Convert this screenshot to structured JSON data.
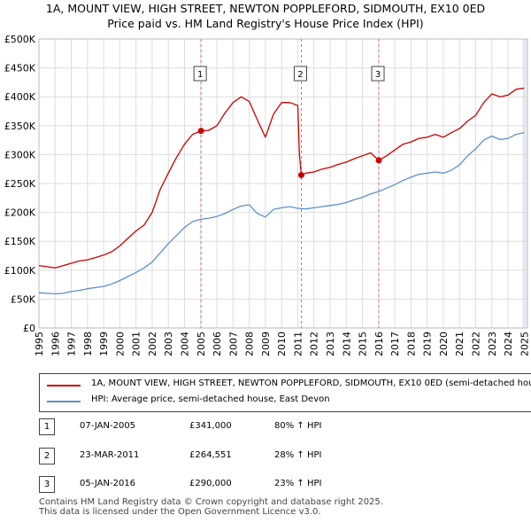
{
  "title_line1": "1A, MOUNT VIEW, HIGH STREET, NEWTON POPPLEFORD, SIDMOUTH, EX10 0ED",
  "title_line2": "Price paid vs. HM Land Registry's House Price Index (HPI)",
  "colors": {
    "price_line": "#cc0000",
    "hpi_line": "#5b8fd0",
    "grid": "#dddddd",
    "band": "#e8eef8",
    "vline": "#e07070"
  },
  "chart_data": {
    "type": "line",
    "ylim": [
      0,
      500000
    ],
    "xlim": [
      1995,
      2025.2
    ],
    "y_ticks": [
      0,
      50000,
      100000,
      150000,
      200000,
      250000,
      300000,
      350000,
      400000,
      450000,
      500000
    ],
    "y_tick_labels": [
      "£0",
      "£50K",
      "£100K",
      "£150K",
      "£200K",
      "£250K",
      "£300K",
      "£350K",
      "£400K",
      "£450K",
      "£500K"
    ],
    "x_ticks": [
      1995,
      1996,
      1997,
      1998,
      1999,
      2000,
      2001,
      2002,
      2003,
      2004,
      2005,
      2006,
      2007,
      2008,
      2009,
      2010,
      2011,
      2012,
      2013,
      2014,
      2015,
      2016,
      2017,
      2018,
      2019,
      2020,
      2021,
      2022,
      2023,
      2024,
      2025
    ],
    "x_tick_labels": [
      "1995",
      "1996",
      "1997",
      "1998",
      "1999",
      "2000",
      "2001",
      "2002",
      "2003",
      "2004",
      "2005",
      "2006",
      "2007",
      "2008",
      "2009",
      "2010",
      "2011",
      "2012",
      "2013",
      "2014",
      "2015",
      "2016",
      "2017",
      "2018",
      "2019",
      "2020",
      "2021",
      "2022",
      "2023",
      "2024",
      "2025"
    ],
    "series": [
      {
        "name": "1A, MOUNT VIEW, HIGH STREET, NEWTON POPPLEFORD, SIDMOUTH, EX10 0ED (semi-detached house)",
        "color": "#cc0000",
        "x": [
          1995.0,
          1995.5,
          1996.0,
          1996.5,
          1997.0,
          1997.5,
          1998.0,
          1998.5,
          1999.0,
          1999.5,
          2000.0,
          2000.5,
          2001.0,
          2001.5,
          2002.0,
          2002.5,
          2003.0,
          2003.5,
          2004.0,
          2004.5,
          2005.02,
          2005.5,
          2006.0,
          2006.5,
          2007.0,
          2007.5,
          2008.0,
          2008.5,
          2009.0,
          2009.5,
          2010.0,
          2010.5,
          2011.0,
          2011.1,
          2011.22,
          2011.5,
          2012.0,
          2012.5,
          2013.0,
          2013.5,
          2014.0,
          2014.5,
          2015.0,
          2015.5,
          2016.01,
          2016.5,
          2017.0,
          2017.5,
          2018.0,
          2018.5,
          2019.0,
          2019.5,
          2020.0,
          2020.5,
          2021.0,
          2021.5,
          2022.0,
          2022.5,
          2023.0,
          2023.5,
          2024.0,
          2024.5,
          2025.0
        ],
        "values": [
          108000,
          106000,
          104000,
          108000,
          112000,
          116000,
          118000,
          122000,
          126000,
          132000,
          142000,
          155000,
          168000,
          178000,
          200000,
          240000,
          268000,
          295000,
          318000,
          335000,
          341000,
          342000,
          350000,
          372000,
          390000,
          400000,
          392000,
          360000,
          330000,
          370000,
          390000,
          390000,
          385000,
          300000,
          264551,
          268000,
          270000,
          275000,
          278000,
          283000,
          287000,
          293000,
          298000,
          303000,
          290000,
          298000,
          308000,
          318000,
          322000,
          328000,
          330000,
          335000,
          330000,
          338000,
          345000,
          358000,
          368000,
          390000,
          405000,
          400000,
          403000,
          413000,
          415000
        ]
      },
      {
        "name": "HPI: Average price, semi-detached house, East Devon",
        "color": "#5b8fd0",
        "x": [
          1995.0,
          1995.5,
          1996.0,
          1996.5,
          1997.0,
          1997.5,
          1998.0,
          1998.5,
          1999.0,
          1999.5,
          2000.0,
          2000.5,
          2001.0,
          2001.5,
          2002.0,
          2002.5,
          2003.0,
          2003.5,
          2004.0,
          2004.5,
          2005.0,
          2005.5,
          2006.0,
          2006.5,
          2007.0,
          2007.5,
          2008.0,
          2008.5,
          2009.0,
          2009.5,
          2010.0,
          2010.5,
          2011.0,
          2011.5,
          2012.0,
          2012.5,
          2013.0,
          2013.5,
          2014.0,
          2014.5,
          2015.0,
          2015.5,
          2016.0,
          2016.5,
          2017.0,
          2017.5,
          2018.0,
          2018.5,
          2019.0,
          2019.5,
          2020.0,
          2020.5,
          2021.0,
          2021.5,
          2022.0,
          2022.5,
          2023.0,
          2023.5,
          2024.0,
          2024.5,
          2025.0
        ],
        "values": [
          61000,
          60000,
          59000,
          60000,
          63000,
          65000,
          68000,
          70000,
          72000,
          76000,
          82000,
          89000,
          96000,
          104000,
          114000,
          130000,
          146000,
          160000,
          174000,
          184000,
          188000,
          190000,
          193000,
          198000,
          205000,
          211000,
          213000,
          198000,
          192000,
          205000,
          208000,
          210000,
          207000,
          206000,
          208000,
          210000,
          212000,
          214000,
          217000,
          222000,
          226000,
          232000,
          236000,
          242000,
          248000,
          255000,
          261000,
          266000,
          268000,
          270000,
          268000,
          273000,
          282000,
          298000,
          310000,
          325000,
          332000,
          326000,
          328000,
          335000,
          338000
        ]
      }
    ],
    "sale_markers": [
      {
        "label": "1",
        "x": 2005.02,
        "y": 341000
      },
      {
        "label": "2",
        "x": 2011.22,
        "y": 264551
      },
      {
        "label": "3",
        "x": 2016.01,
        "y": 290000
      }
    ]
  },
  "legend": {
    "price_label": "1A, MOUNT VIEW, HIGH STREET, NEWTON POPPLEFORD, SIDMOUTH, EX10 0ED (semi-detached house)",
    "hpi_label": "HPI: Average price, semi-detached house, East Devon"
  },
  "sales": [
    {
      "num": "1",
      "date": "07-JAN-2005",
      "price": "£341,000",
      "hpi": "80% ↑ HPI"
    },
    {
      "num": "2",
      "date": "23-MAR-2011",
      "price": "£264,551",
      "hpi": "28% ↑ HPI"
    },
    {
      "num": "3",
      "date": "05-JAN-2016",
      "price": "£290,000",
      "hpi": "23% ↑ HPI"
    }
  ],
  "footer_line1": "Contains HM Land Registry data © Crown copyright and database right 2025.",
  "footer_line2": "This data is licensed under the Open Government Licence v3.0."
}
